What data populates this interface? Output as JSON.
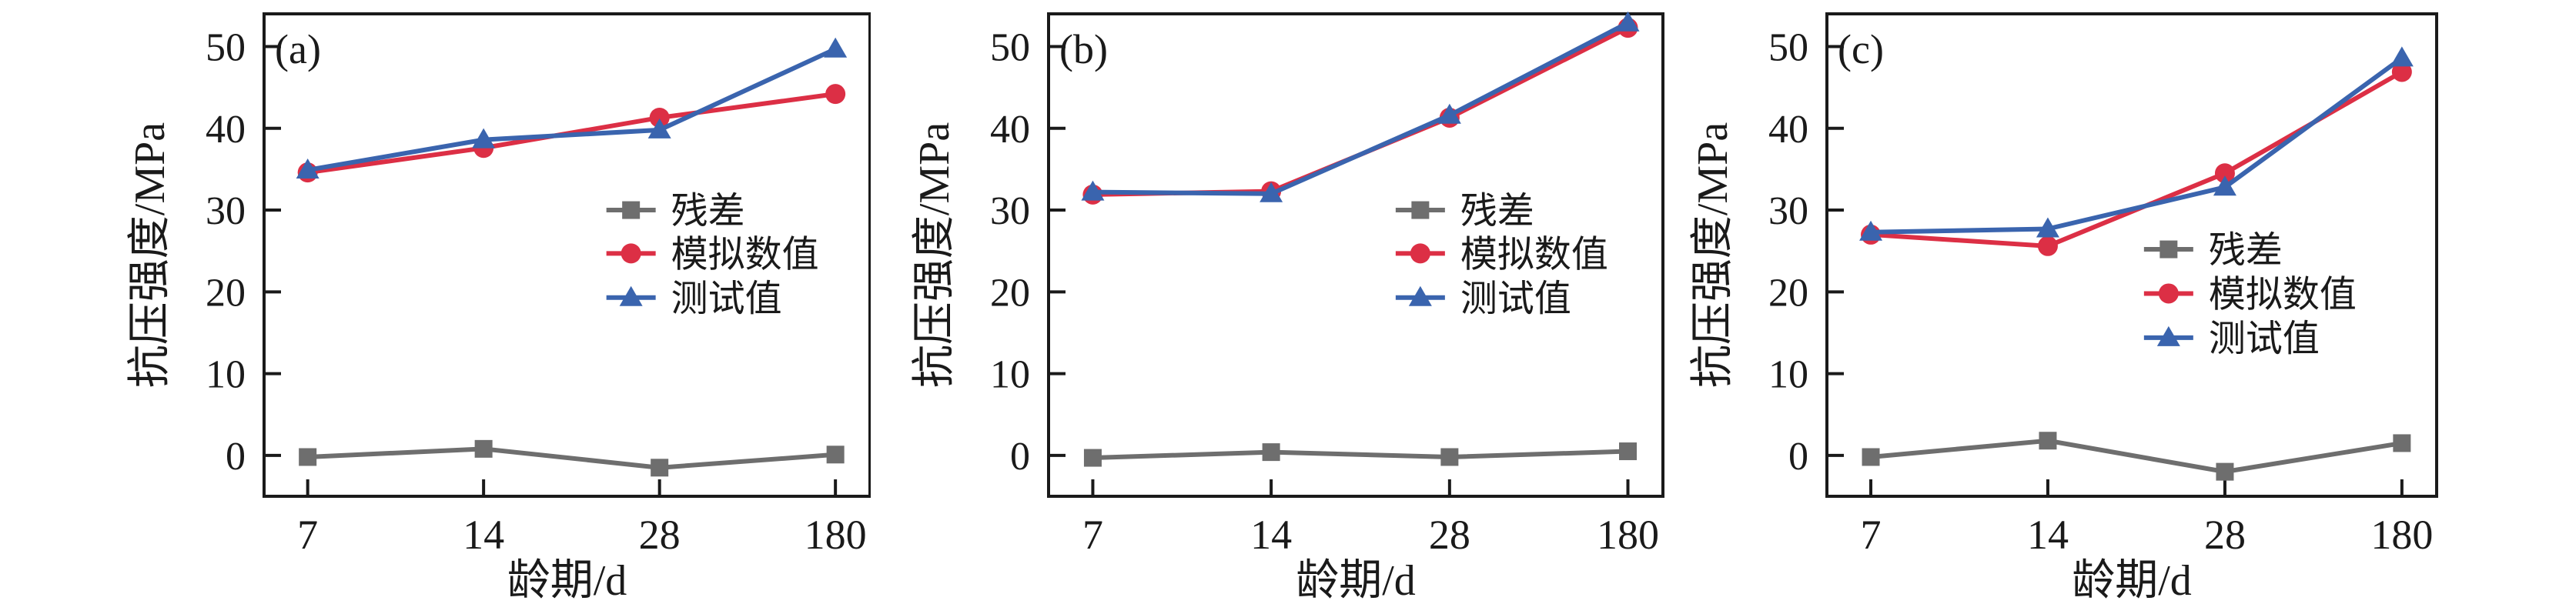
{
  "figure": {
    "description": "Three-panel line chart figure comparing simulated and tested compressive strength over curing age",
    "background": "#ffffff"
  },
  "colors": {
    "axis": "#1a1a1a",
    "residual": "#6e6e6e",
    "simulated": "#dc2f45",
    "test": "#3a64ae"
  },
  "chart_data": [
    {
      "type": "line",
      "panel_label": "(a)",
      "title": "",
      "xlabel": "龄期/d",
      "ylabel": "抗压强度/MPa",
      "categories": [
        "7",
        "14",
        "28",
        "180"
      ],
      "yticks": [
        0,
        10,
        20,
        30,
        40,
        50
      ],
      "ylim": [
        -5,
        54
      ],
      "grid": false,
      "legend_position": "inside-middle-right",
      "legend_layout": {
        "x_frac": 0.565,
        "row_values": [
          30,
          24.7,
          19.3
        ]
      },
      "series": [
        {
          "name": "残差",
          "marker": "square",
          "color": "#6e6e6e",
          "values": [
            -0.2,
            0.8,
            -1.5,
            0.1
          ]
        },
        {
          "name": "模拟数值",
          "marker": "circle",
          "color": "#dc2f45",
          "values": [
            34.6,
            37.6,
            41.3,
            44.2
          ]
        },
        {
          "name": "测试值",
          "marker": "triangle",
          "color": "#3a64ae",
          "values": [
            34.9,
            38.6,
            39.8,
            49.7
          ]
        }
      ]
    },
    {
      "type": "line",
      "panel_label": "(b)",
      "title": "",
      "xlabel": "龄期/d",
      "ylabel": "抗压强度/MPa",
      "categories": [
        "7",
        "14",
        "28",
        "180"
      ],
      "yticks": [
        0,
        10,
        20,
        30,
        40,
        50
      ],
      "ylim": [
        -5,
        54
      ],
      "grid": false,
      "legend_position": "inside-middle-right",
      "legend_layout": {
        "x_frac": 0.565,
        "row_values": [
          30,
          24.7,
          19.3
        ]
      },
      "series": [
        {
          "name": "残差",
          "marker": "square",
          "color": "#6e6e6e",
          "values": [
            -0.3,
            0.4,
            -0.2,
            0.5
          ]
        },
        {
          "name": "模拟数值",
          "marker": "circle",
          "color": "#dc2f45",
          "values": [
            31.9,
            32.3,
            41.3,
            52.3
          ]
        },
        {
          "name": "测试值",
          "marker": "triangle",
          "color": "#3a64ae",
          "values": [
            32.2,
            32.0,
            41.6,
            52.9
          ]
        }
      ]
    },
    {
      "type": "line",
      "panel_label": "(c)",
      "title": "",
      "xlabel": "龄期/d",
      "ylabel": "抗压强度/MPa",
      "categories": [
        "7",
        "14",
        "28",
        "180"
      ],
      "yticks": [
        0,
        10,
        20,
        30,
        40,
        50
      ],
      "ylim": [
        -5,
        54
      ],
      "grid": false,
      "legend_position": "inside-middle-right",
      "legend_layout": {
        "x_frac": 0.52,
        "row_values": [
          25.2,
          19.8,
          14.4
        ]
      },
      "series": [
        {
          "name": "残差",
          "marker": "square",
          "color": "#6e6e6e",
          "values": [
            -0.2,
            1.8,
            -2.0,
            1.5
          ]
        },
        {
          "name": "模拟数值",
          "marker": "circle",
          "color": "#dc2f45",
          "values": [
            27.0,
            25.6,
            34.5,
            46.9
          ]
        },
        {
          "name": "测试值",
          "marker": "triangle",
          "color": "#3a64ae",
          "values": [
            27.3,
            27.7,
            32.8,
            48.6
          ]
        }
      ]
    }
  ]
}
